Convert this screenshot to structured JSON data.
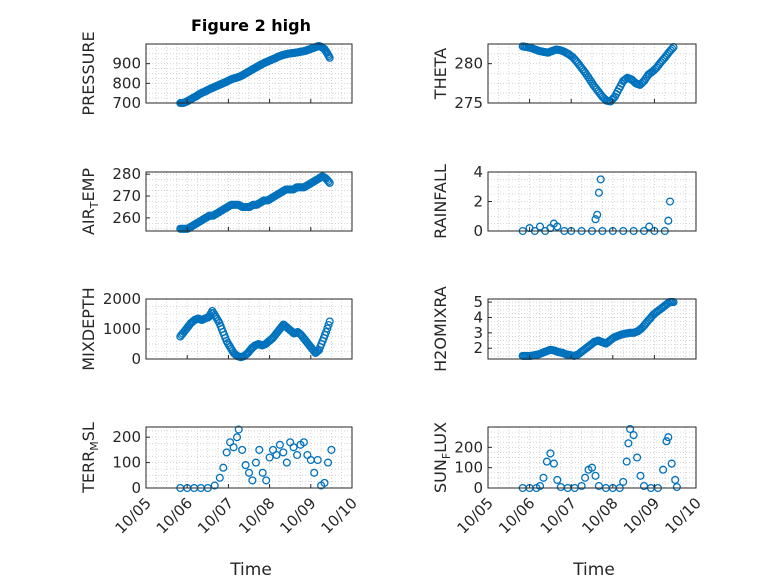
{
  "figure": {
    "title": "Figure 2 high",
    "xlabel": "Time"
  },
  "colors": {
    "marker": "#0072bd",
    "axis": "#262626",
    "grid": "#cccccc"
  },
  "chart_data": [
    {
      "type": "scatter",
      "ylabel": "PRESSURE",
      "xlim": [
        "10/05",
        "10/10"
      ],
      "ylim": [
        700,
        1000
      ],
      "yticks": [
        700,
        800,
        900
      ],
      "xticks": [
        "10/05",
        "10/06",
        "10/07",
        "10/08",
        "10/09",
        "10/10"
      ],
      "series": [
        {
          "values_start": "10/05 20:00",
          "values_end": "10/09 11:00",
          "y": [
            700,
            700,
            705,
            712,
            720,
            728,
            735,
            745,
            752,
            758,
            765,
            772,
            778,
            784,
            790,
            796,
            802,
            808,
            815,
            822,
            826,
            830,
            835,
            842,
            850,
            858,
            866,
            874,
            882,
            890,
            897,
            904,
            910,
            916,
            922,
            928,
            935,
            940,
            945,
            948,
            951,
            953,
            955,
            957,
            960,
            962,
            965,
            970,
            975,
            980,
            985,
            990,
            985,
            975,
            955,
            930
          ]
        }
      ]
    },
    {
      "type": "scatter",
      "ylabel": "THETA",
      "xlim": [
        "10/05",
        "10/10"
      ],
      "ylim": [
        275,
        282.5
      ],
      "yticks": [
        275,
        280
      ],
      "xticks": [
        "10/05",
        "10/06",
        "10/07",
        "10/08",
        "10/09",
        "10/10"
      ],
      "series": [
        {
          "values_start": "10/05 20:00",
          "values_end": "10/09 11:00",
          "y": [
            282.2,
            282.1,
            282.0,
            281.8,
            281.6,
            281.5,
            281.4,
            281.6,
            281.8,
            281.7,
            281.5,
            281.2,
            280.8,
            280.2,
            279.5,
            278.8,
            278.0,
            277.2,
            276.5,
            275.8,
            275.3,
            275.2,
            275.8,
            276.8,
            277.8,
            278.2,
            278.0,
            277.5,
            277.3,
            277.8,
            278.6,
            279.0,
            279.5,
            280.2,
            280.8,
            281.5,
            282.1
          ]
        }
      ]
    },
    {
      "type": "scatter",
      "ylabel": "AIR_TEMP",
      "ylabel_sub": "T",
      "ylabel_pre": "AIR",
      "ylabel_post": "EMP",
      "xlim": [
        "10/05",
        "10/10"
      ],
      "ylim": [
        254,
        281
      ],
      "yticks": [
        260,
        270,
        280
      ],
      "xticks": [
        "10/05",
        "10/06",
        "10/07",
        "10/08",
        "10/09",
        "10/10"
      ],
      "series": [
        {
          "values_start": "10/05 20:00",
          "values_end": "10/09 11:00",
          "y": [
            255,
            255,
            255,
            256,
            257,
            258,
            259,
            260,
            261,
            261,
            262,
            263,
            264,
            265,
            266,
            266,
            266,
            265,
            265,
            265,
            266,
            266,
            267,
            268,
            268,
            269,
            270,
            271,
            272,
            273,
            273,
            273,
            274,
            274,
            274,
            275,
            276,
            277,
            278,
            279,
            278,
            276
          ]
        }
      ]
    },
    {
      "type": "scatter",
      "ylabel": "RAINFALL",
      "xlim": [
        "10/05",
        "10/10"
      ],
      "ylim": [
        0,
        4
      ],
      "yticks": [
        0,
        2,
        4
      ],
      "xticks": [
        "10/05",
        "10/06",
        "10/07",
        "10/08",
        "10/09",
        "10/10"
      ],
      "series": [
        {
          "points": [
            [
              "10/05 20:00",
              0
            ],
            [
              "10/06 00:00",
              0.2
            ],
            [
              "10/06 03:00",
              0
            ],
            [
              "10/06 06:00",
              0.3
            ],
            [
              "10/06 09:00",
              0
            ],
            [
              "10/06 12:00",
              0.2
            ],
            [
              "10/06 14:00",
              0.5
            ],
            [
              "10/06 16:00",
              0.3
            ],
            [
              "10/06 20:00",
              0
            ],
            [
              "10/07 00:00",
              0
            ],
            [
              "10/07 06:00",
              0
            ],
            [
              "10/07 12:00",
              0
            ],
            [
              "10/07 14:00",
              0.8
            ],
            [
              "10/07 15:00",
              1.1
            ],
            [
              "10/07 16:00",
              2.6
            ],
            [
              "10/07 17:00",
              3.5
            ],
            [
              "10/07 18:00",
              0
            ],
            [
              "10/08 00:00",
              0
            ],
            [
              "10/08 06:00",
              0
            ],
            [
              "10/08 12:00",
              0
            ],
            [
              "10/08 18:00",
              0
            ],
            [
              "10/08 21:00",
              0.3
            ],
            [
              "10/09 00:00",
              0
            ],
            [
              "10/09 06:00",
              0
            ],
            [
              "10/09 08:00",
              0.7
            ],
            [
              "10/09 09:00",
              2.0
            ]
          ]
        }
      ]
    },
    {
      "type": "scatter",
      "ylabel": "MIXDEPTH",
      "xlim": [
        "10/05",
        "10/10"
      ],
      "ylim": [
        0,
        2000
      ],
      "yticks": [
        0,
        1000,
        2000
      ],
      "xticks": [
        "10/05",
        "10/06",
        "10/07",
        "10/08",
        "10/09",
        "10/10"
      ],
      "series": [
        {
          "values_start": "10/05 20:00",
          "values_end": "10/09 11:00",
          "y": [
            750,
            900,
            1050,
            1200,
            1300,
            1350,
            1300,
            1350,
            1400,
            1600,
            1400,
            1200,
            900,
            600,
            400,
            200,
            100,
            60,
            100,
            200,
            350,
            450,
            500,
            450,
            500,
            600,
            700,
            850,
            1000,
            1150,
            1050,
            950,
            850,
            900,
            800,
            650,
            500,
            350,
            200,
            300,
            600,
            900,
            1250
          ]
        }
      ]
    },
    {
      "type": "scatter",
      "ylabel": "H2OMIXRA",
      "xlim": [
        "10/05",
        "10/10"
      ],
      "ylim": [
        1.3,
        5.2
      ],
      "yticks": [
        2,
        3,
        4,
        5
      ],
      "xticks": [
        "10/05",
        "10/06",
        "10/07",
        "10/08",
        "10/09",
        "10/10"
      ],
      "series": [
        {
          "values_start": "10/05 20:00",
          "values_end": "10/09 11:00",
          "y": [
            1.5,
            1.5,
            1.5,
            1.55,
            1.6,
            1.7,
            1.8,
            1.9,
            1.85,
            1.75,
            1.7,
            1.6,
            1.55,
            1.5,
            1.6,
            1.8,
            2.0,
            2.2,
            2.4,
            2.5,
            2.4,
            2.3,
            2.5,
            2.7,
            2.8,
            2.9,
            2.95,
            3.0,
            3.0,
            3.1,
            3.3,
            3.6,
            3.9,
            4.2,
            4.4,
            4.6,
            4.8,
            5.0,
            5.0
          ]
        }
      ]
    },
    {
      "type": "scatter",
      "ylabel": "TERR_MSL",
      "ylabel_pre": "TERR",
      "ylabel_sub": "M",
      "ylabel_post": "SL",
      "xlim": [
        "10/05",
        "10/10"
      ],
      "ylim": [
        0,
        240
      ],
      "yticks": [
        0,
        100,
        200
      ],
      "xticks": [
        "10/05",
        "10/06",
        "10/07",
        "10/08",
        "10/09",
        "10/10"
      ],
      "series": [
        {
          "points": [
            [
              "10/05 20:00",
              0
            ],
            [
              "10/06 00:00",
              0
            ],
            [
              "10/06 04:00",
              0
            ],
            [
              "10/06 08:00",
              0
            ],
            [
              "10/06 12:00",
              0
            ],
            [
              "10/06 16:00",
              10
            ],
            [
              "10/06 19:00",
              40
            ],
            [
              "10/06 21:00",
              80
            ],
            [
              "10/06 23:00",
              140
            ],
            [
              "10/07 01:00",
              180
            ],
            [
              "10/07 03:00",
              160
            ],
            [
              "10/07 05:00",
              200
            ],
            [
              "10/07 06:00",
              230
            ],
            [
              "10/07 08:00",
              150
            ],
            [
              "10/07 10:00",
              90
            ],
            [
              "10/07 12:00",
              60
            ],
            [
              "10/07 14:00",
              30
            ],
            [
              "10/07 16:00",
              100
            ],
            [
              "10/07 18:00",
              150
            ],
            [
              "10/07 20:00",
              60
            ],
            [
              "10/07 22:00",
              30
            ],
            [
              "10/08 00:00",
              120
            ],
            [
              "10/08 02:00",
              150
            ],
            [
              "10/08 04:00",
              130
            ],
            [
              "10/08 06:00",
              170
            ],
            [
              "10/08 08:00",
              140
            ],
            [
              "10/08 10:00",
              100
            ],
            [
              "10/08 12:00",
              180
            ],
            [
              "10/08 14:00",
              160
            ],
            [
              "10/08 16:00",
              130
            ],
            [
              "10/08 18:00",
              170
            ],
            [
              "10/08 20:00",
              180
            ],
            [
              "10/08 22:00",
              130
            ],
            [
              "10/09 00:00",
              110
            ],
            [
              "10/09 02:00",
              60
            ],
            [
              "10/09 04:00",
              110
            ],
            [
              "10/09 06:00",
              10
            ],
            [
              "10/09 08:00",
              20
            ],
            [
              "10/09 10:00",
              100
            ],
            [
              "10/09 12:00",
              150
            ]
          ]
        }
      ]
    },
    {
      "type": "scatter",
      "ylabel": "SUN_FLUX",
      "ylabel_pre": "SUN",
      "ylabel_sub": "F",
      "ylabel_post": "LUX",
      "xlim": [
        "10/05",
        "10/10"
      ],
      "ylim": [
        0,
        300
      ],
      "yticks": [
        0,
        100,
        200
      ],
      "xticks": [
        "10/05",
        "10/06",
        "10/07",
        "10/08",
        "10/09",
        "10/10"
      ],
      "series": [
        {
          "points": [
            [
              "10/05 20:00",
              0
            ],
            [
              "10/06 00:00",
              0
            ],
            [
              "10/06 04:00",
              0
            ],
            [
              "10/06 06:00",
              10
            ],
            [
              "10/06 08:00",
              50
            ],
            [
              "10/06 10:00",
              130
            ],
            [
              "10/06 12:00",
              170
            ],
            [
              "10/06 14:00",
              120
            ],
            [
              "10/06 16:00",
              40
            ],
            [
              "10/06 18:00",
              5
            ],
            [
              "10/06 22:00",
              0
            ],
            [
              "10/07 02:00",
              0
            ],
            [
              "10/07 06:00",
              10
            ],
            [
              "10/07 08:00",
              50
            ],
            [
              "10/07 10:00",
              90
            ],
            [
              "10/07 12:00",
              100
            ],
            [
              "10/07 14:00",
              60
            ],
            [
              "10/07 16:00",
              10
            ],
            [
              "10/07 20:00",
              0
            ],
            [
              "10/08 00:00",
              0
            ],
            [
              "10/08 04:00",
              0
            ],
            [
              "10/08 06:00",
              30
            ],
            [
              "10/08 08:00",
              130
            ],
            [
              "10/08 09:00",
              220
            ],
            [
              "10/08 10:00",
              290
            ],
            [
              "10/08 12:00",
              260
            ],
            [
              "10/08 14:00",
              150
            ],
            [
              "10/08 16:00",
              60
            ],
            [
              "10/08 18:00",
              10
            ],
            [
              "10/08 22:00",
              0
            ],
            [
              "10/09 02:00",
              0
            ],
            [
              "10/09 05:00",
              90
            ],
            [
              "10/09 07:00",
              230
            ],
            [
              "10/09 08:00",
              250
            ],
            [
              "10/09 10:00",
              120
            ],
            [
              "10/09 12:00",
              40
            ],
            [
              "10/09 13:00",
              5
            ]
          ]
        }
      ]
    }
  ]
}
